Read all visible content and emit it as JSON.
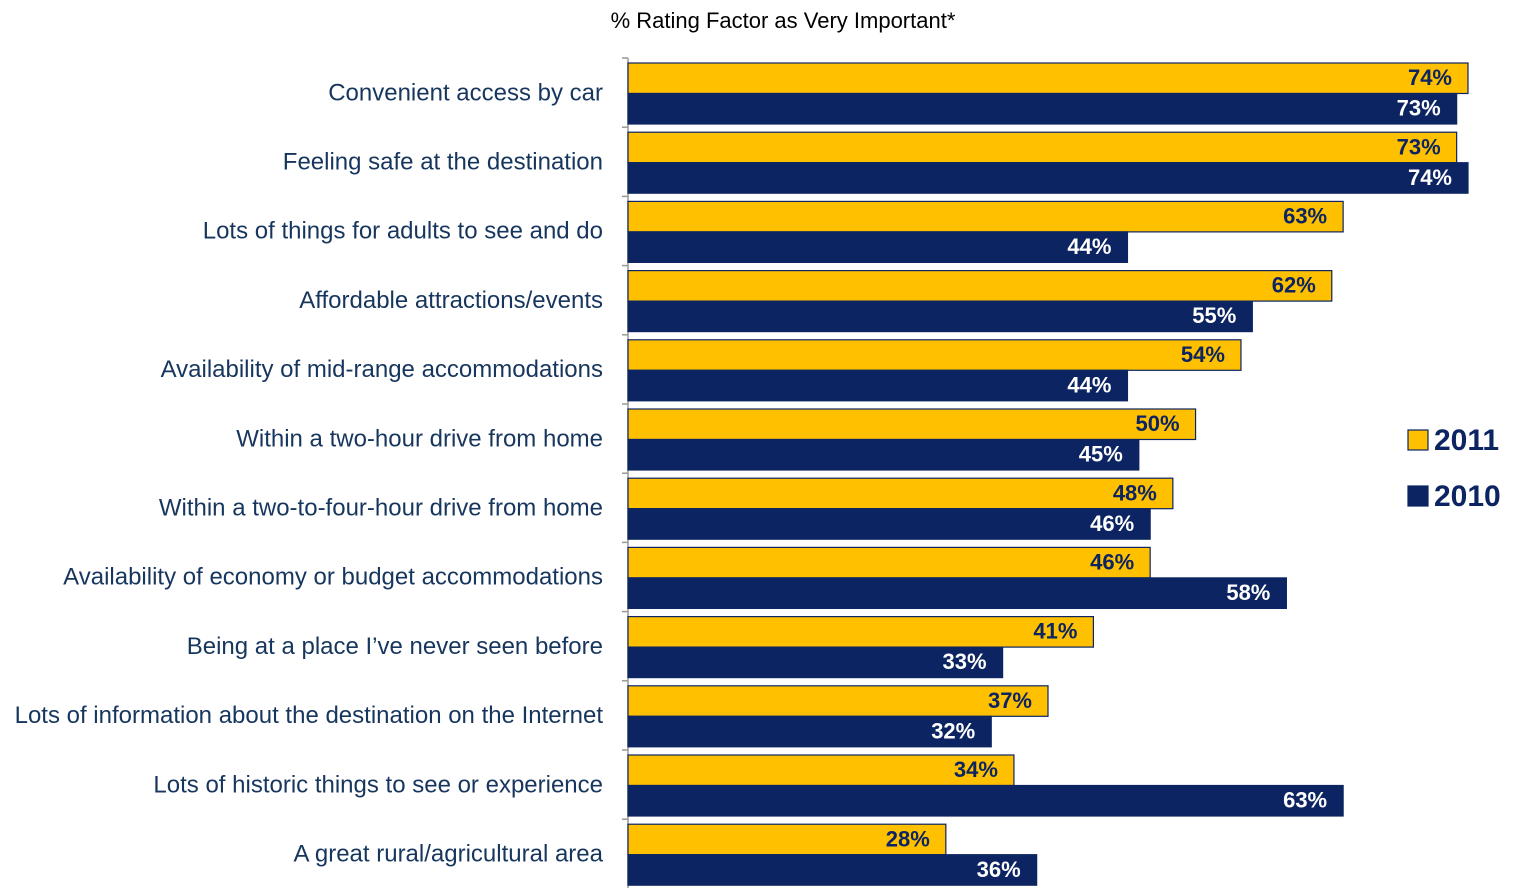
{
  "chart_data": {
    "type": "bar",
    "orientation": "horizontal",
    "title": "% Rating Factor as Very Important*",
    "categories": [
      "Convenient access by car",
      "Feeling safe at the destination",
      "Lots of things for adults to see and do",
      "Affordable attractions/events",
      "Availability of mid-range accommodations",
      "Within a two-hour drive from home",
      "Within a two-to-four-hour drive from home",
      "Availability of economy or budget accommodations",
      "Being at a place I’ve never seen before",
      "Lots of information about the destination on the Internet",
      "Lots of historic things to see or experience",
      "A great rural/agricultural area"
    ],
    "series": [
      {
        "name": "2011",
        "color": "#FFC000",
        "values": [
          74,
          73,
          63,
          62,
          54,
          50,
          48,
          46,
          41,
          37,
          34,
          28
        ],
        "value_labels": [
          "74%",
          "73%",
          "63%",
          "62%",
          "54%",
          "50%",
          "48%",
          "46%",
          "41%",
          "37%",
          "34%",
          "28%"
        ]
      },
      {
        "name": "2010",
        "color": "#0C2461",
        "values": [
          73,
          74,
          44,
          55,
          44,
          45,
          46,
          58,
          33,
          32,
          63,
          36
        ],
        "value_labels": [
          "73%",
          "74%",
          "44%",
          "55%",
          "44%",
          "45%",
          "46%",
          "58%",
          "33%",
          "32%",
          "63%",
          "36%"
        ]
      }
    ],
    "legend": "right"
  }
}
